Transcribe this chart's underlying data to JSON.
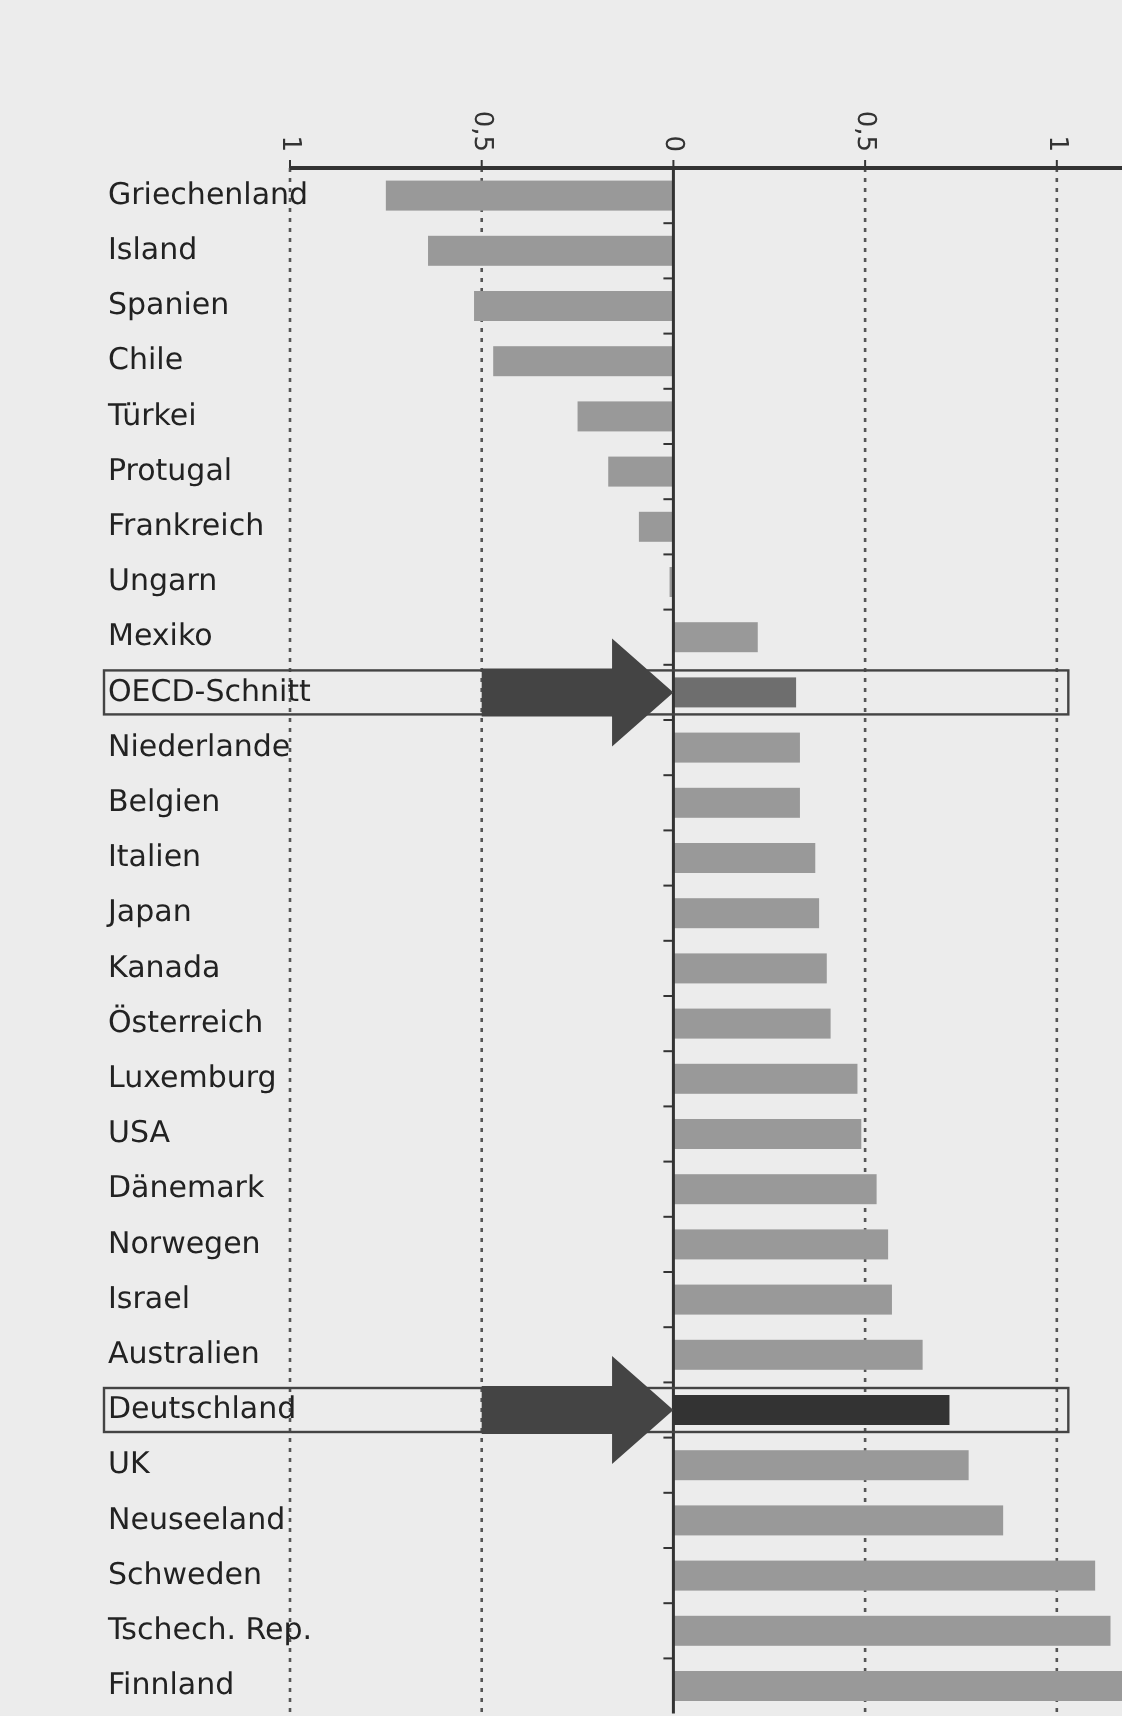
{
  "chart_data": {
    "type": "bar",
    "orientation": "horizontal",
    "categories": [
      "Griechenland",
      "Island",
      "Spanien",
      "Chile",
      "Türkei",
      "Protugal",
      "Frankreich",
      "Ungarn",
      "Mexiko",
      "OECD-Schnitt",
      "Niederlande",
      "Belgien",
      "Italien",
      "Japan",
      "Kanada",
      "Österreich",
      "Luxemburg",
      "USA",
      "Dänemark",
      "Norwegen",
      "Israel",
      "Australien",
      "Deutschland",
      "UK",
      "Neuseeland",
      "Schweden",
      "Tschech. Rep.",
      "Finnland"
    ],
    "values": [
      -0.75,
      -0.64,
      -0.52,
      -0.47,
      -0.25,
      -0.17,
      -0.09,
      -0.01,
      0.22,
      0.32,
      0.33,
      0.33,
      0.37,
      0.38,
      0.4,
      0.41,
      0.48,
      0.49,
      0.53,
      0.56,
      0.57,
      0.65,
      0.72,
      0.77,
      0.86,
      1.1,
      1.14,
      1.17
    ],
    "colors": [
      "#999999",
      "#999999",
      "#999999",
      "#999999",
      "#999999",
      "#999999",
      "#999999",
      "#999999",
      "#999999",
      "#6e6e6e",
      "#999999",
      "#999999",
      "#999999",
      "#999999",
      "#999999",
      "#999999",
      "#999999",
      "#999999",
      "#999999",
      "#999999",
      "#999999",
      "#999999",
      "#333333",
      "#999999",
      "#999999",
      "#999999",
      "#999999",
      "#999999"
    ],
    "xlim": [
      -1,
      1.17
    ],
    "xticks": [
      {
        "value": -1,
        "label": "1"
      },
      {
        "value": -0.5,
        "label": "0,5"
      },
      {
        "value": 0,
        "label": "0"
      },
      {
        "value": 0.5,
        "label": "0,5"
      },
      {
        "value": 1,
        "label": "1"
      }
    ],
    "grid": "x"
  }
}
